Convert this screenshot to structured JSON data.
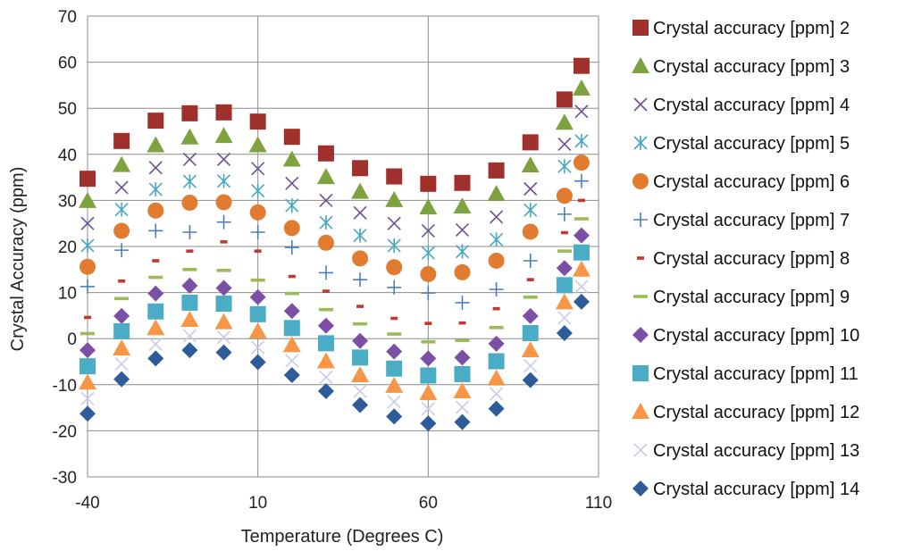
{
  "chart_data": {
    "type": "scatter",
    "xlabel": "Temperature (Degrees C)",
    "ylabel": "Crystal Accuracy (ppm)",
    "xlim": [
      -40,
      110
    ],
    "ylim": [
      -30,
      70
    ],
    "xticks": [
      -40,
      10,
      60,
      110
    ],
    "yticks": [
      -30,
      -20,
      -10,
      0,
      10,
      20,
      30,
      40,
      50,
      60,
      70
    ],
    "grid": true,
    "legend_position": "right",
    "x": [
      -40,
      -30,
      -20,
      -10,
      0,
      10,
      20,
      30,
      40,
      50,
      60,
      70,
      80,
      90,
      100,
      105
    ],
    "series": [
      {
        "name": "Crystal accuracy [ppm] 2",
        "color": "#A0302C",
        "marker": "square",
        "values": [
          34.7,
          42.9,
          47.3,
          48.9,
          49.1,
          47.1,
          43.8,
          40.2,
          37.0,
          35.2,
          33.6,
          33.8,
          36.5,
          42.6,
          51.9,
          59.2
        ]
      },
      {
        "name": "Crystal accuracy [ppm] 3",
        "color": "#7EA33E",
        "marker": "triangle",
        "values": [
          29.9,
          37.7,
          42.0,
          43.7,
          44.0,
          42.0,
          38.9,
          35.1,
          31.9,
          30.1,
          28.5,
          28.7,
          31.4,
          37.6,
          46.9,
          54.3
        ]
      },
      {
        "name": "Crystal accuracy [ppm] 4",
        "color": "#6B5294",
        "marker": "x",
        "values": [
          25.0,
          32.8,
          37.1,
          38.9,
          38.9,
          36.9,
          33.7,
          30.0,
          27.3,
          25.0,
          23.4,
          23.6,
          26.4,
          32.5,
          42.2,
          49.3
        ]
      },
      {
        "name": "Crystal accuracy [ppm] 5",
        "color": "#46A7C0",
        "marker": "asterisk",
        "values": [
          20.2,
          28.0,
          32.4,
          34.1,
          34.2,
          32.1,
          28.9,
          25.2,
          22.4,
          20.2,
          18.6,
          18.9,
          21.5,
          27.9,
          37.4,
          42.9
        ]
      },
      {
        "name": "Crystal accuracy [ppm] 6",
        "color": "#E07B30",
        "marker": "circle",
        "values": [
          15.6,
          23.4,
          27.8,
          29.5,
          29.6,
          27.4,
          24.0,
          20.8,
          17.4,
          15.5,
          14.0,
          14.4,
          16.9,
          23.2,
          31.0,
          38.2
        ]
      },
      {
        "name": "Crystal accuracy [ppm] 7",
        "color": "#4A7EBB",
        "marker": "plus",
        "values": [
          11.3,
          19.2,
          23.4,
          23.1,
          25.3,
          23.1,
          19.8,
          14.3,
          12.8,
          11.1,
          9.9,
          7.8,
          10.7,
          16.9,
          27.0,
          34.2
        ]
      },
      {
        "name": "Crystal accuracy [ppm] 8",
        "color": "#C0392B",
        "marker": "dash",
        "values": [
          4.6,
          12.5,
          16.9,
          19.0,
          21.0,
          19.0,
          13.5,
          10.3,
          7.0,
          4.4,
          3.3,
          3.4,
          6.5,
          12.8,
          23.0,
          30.0
        ]
      },
      {
        "name": "Crystal accuracy [ppm] 9",
        "color": "#9BBB59",
        "marker": "long-dash",
        "values": [
          1.1,
          8.7,
          13.3,
          15.0,
          14.8,
          12.7,
          9.8,
          6.3,
          3.2,
          1.0,
          -0.7,
          -0.4,
          2.4,
          9.0,
          19.0,
          26.0
        ]
      },
      {
        "name": "Crystal accuracy [ppm] 10",
        "color": "#7B4FA6",
        "marker": "diamond",
        "values": [
          -2.5,
          4.9,
          9.8,
          11.5,
          11.0,
          9.0,
          6.0,
          2.8,
          -0.5,
          -2.8,
          -4.3,
          -4.1,
          -1.1,
          4.9,
          15.3,
          22.4
        ]
      },
      {
        "name": "Crystal accuracy [ppm] 11",
        "color": "#4BACC6",
        "marker": "square",
        "values": [
          -6.0,
          1.6,
          5.9,
          7.8,
          7.6,
          5.3,
          2.3,
          -1.0,
          -4.1,
          -6.5,
          -8.0,
          -7.7,
          -4.9,
          1.2,
          11.6,
          18.7
        ]
      },
      {
        "name": "Crystal accuracy [ppm] 12",
        "color": "#F79646",
        "marker": "triangle",
        "values": [
          -9.5,
          -2.1,
          2.3,
          4.1,
          3.6,
          1.6,
          -1.4,
          -4.9,
          -7.9,
          -10.2,
          -11.8,
          -11.4,
          -8.6,
          -2.5,
          7.9,
          15.0
        ]
      },
      {
        "name": "Crystal accuracy [ppm] 13",
        "color": "#C5CDE8",
        "marker": "x",
        "values": [
          -13.0,
          -5.5,
          -1.2,
          0.6,
          0.3,
          -1.9,
          -4.8,
          -8.4,
          -11.4,
          -13.7,
          -15.2,
          -14.9,
          -12.0,
          -5.9,
          4.5,
          11.3
        ]
      },
      {
        "name": "Crystal accuracy [ppm] 14",
        "color": "#2E5C99",
        "marker": "diamond",
        "values": [
          -16.3,
          -8.8,
          -4.3,
          -2.5,
          -3.0,
          -5.1,
          -7.9,
          -11.4,
          -14.4,
          -16.9,
          -18.4,
          -18.1,
          -15.2,
          -9.0,
          1.2,
          8.0
        ]
      }
    ]
  }
}
